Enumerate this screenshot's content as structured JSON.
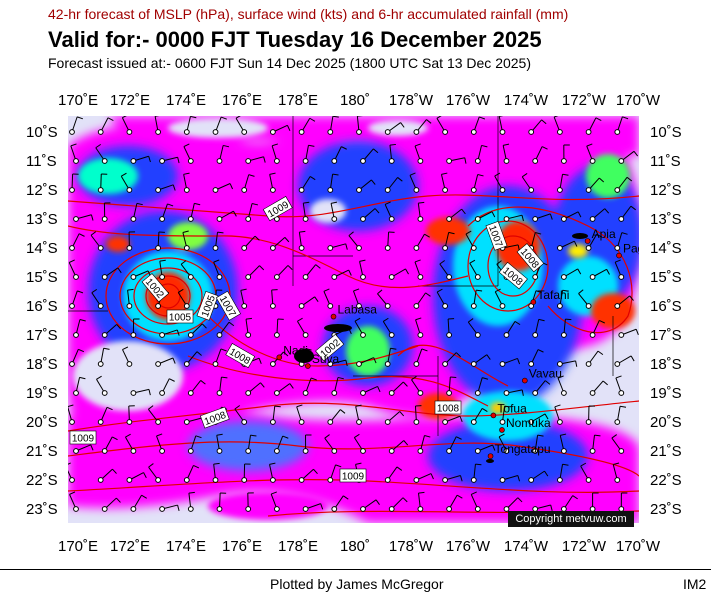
{
  "header": {
    "line1": "42-hr forecast of MSLP (hPa), surface wind (kts) and 6-hr accumulated rainfall (mm)",
    "line2": "Valid for:- 0000 FJT Tuesday 16 December 2025",
    "line3": "Forecast issued at:- 0600 FJT Sun 14 Dec 2025 (1800 UTC Sat 13 Dec 2025)"
  },
  "axes": {
    "lon_labels": [
      "170˚E",
      "172˚E",
      "174˚E",
      "176˚E",
      "178˚E",
      "180˚",
      "178˚W",
      "176˚W",
      "174˚W",
      "172˚W",
      "170˚W"
    ],
    "lat_labels": [
      "10˚S",
      "11˚S",
      "12˚S",
      "13˚S",
      "14˚S",
      "15˚S",
      "16˚S",
      "17˚S",
      "18˚S",
      "19˚S",
      "20˚S",
      "21˚S",
      "22˚S",
      "23˚S"
    ]
  },
  "places": [
    {
      "name": "Apia",
      "lon": -171.8,
      "lat": -13.8
    },
    {
      "name": "Pago Pago",
      "lon": -170.7,
      "lat": -14.3
    },
    {
      "name": "Tafahi",
      "lon": -173.7,
      "lat": -15.9
    },
    {
      "name": "Labasa",
      "lon": 179.3,
      "lat": -16.4
    },
    {
      "name": "Nadi",
      "lon": 177.4,
      "lat": -17.8
    },
    {
      "name": "Suva",
      "lon": 178.4,
      "lat": -18.1
    },
    {
      "name": "Vavau",
      "lon": -174.0,
      "lat": -18.6
    },
    {
      "name": "Nomuka",
      "lon": -174.8,
      "lat": -20.3
    },
    {
      "name": "Tofua",
      "lon": -175.1,
      "lat": -19.8
    },
    {
      "name": "Tongatapu",
      "lon": -175.2,
      "lat": -21.2
    }
  ],
  "isobar_labels": [
    "1009",
    "1007",
    "1008",
    "1008",
    "1002",
    "1005",
    "1005",
    "1007",
    "1008",
    "1002",
    "1008",
    "1009",
    "1009",
    "1008"
  ],
  "legend_colors": {
    "ocean": "#e2e2f8",
    "rain_light": "#ff00ff",
    "rain_moderate": "#0044ff",
    "rain_heavy": "#00ffff",
    "rain_very_heavy": "#ff2200",
    "isobar": "#e00000"
  },
  "copyright": "Copyright metvuw.com",
  "footer": {
    "plotted_by": "Plotted by James McGregor",
    "image_id": "IM2"
  }
}
